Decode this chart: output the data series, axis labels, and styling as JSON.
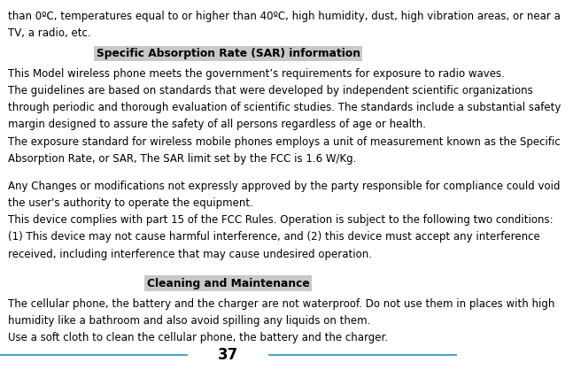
{
  "bg_color": "#ffffff",
  "text_color": "#000000",
  "page_number": "37",
  "line_color": "#3399cc",
  "highlight_color": "#c8c8c8",
  "font_size_body": 8.5,
  "font_size_heading": 8.8,
  "font_size_page": 12.0,
  "intro_lines": [
    "than 0ºC, temperatures equal to or higher than 40ºC, high humidity, dust, high vibration areas, or near a",
    "TV, a radio, etc."
  ],
  "heading1": "Specific Absorption Rate (SAR) information",
  "section1_lines": [
    "This Model wireless phone meets the government’s requirements for exposure to radio waves.",
    "The guidelines are based on standards that were developed by independent scientific organizations",
    "through periodic and thorough evaluation of scientific studies. The standards include a substantial safety",
    "margin designed to assure the safety of all persons regardless of age or health.",
    "The exposure standard for wireless mobile phones employs a unit of measurement known as the Specific",
    "Absorption Rate, or SAR, The SAR limit set by the FCC is 1.6 W/Kg."
  ],
  "section2_lines": [
    "Any Changes or modifications not expressly approved by the party responsible for compliance could void",
    "the user's authority to operate the equipment.",
    "This device complies with part 15 of the FCC Rules. Operation is subject to the following two conditions:",
    "(1) This device may not cause harmful interference, and (2) this device must accept any interference",
    "received, including interference that may cause undesired operation."
  ],
  "heading2": "Cleaning and Maintenance",
  "section3_lines": [
    "The cellular phone, the battery and the charger are not waterproof. Do not use them in places with high",
    "humidity like a bathroom and also avoid spilling any liquids on them.",
    "Use a soft cloth to clean the cellular phone, the battery and the charger."
  ]
}
